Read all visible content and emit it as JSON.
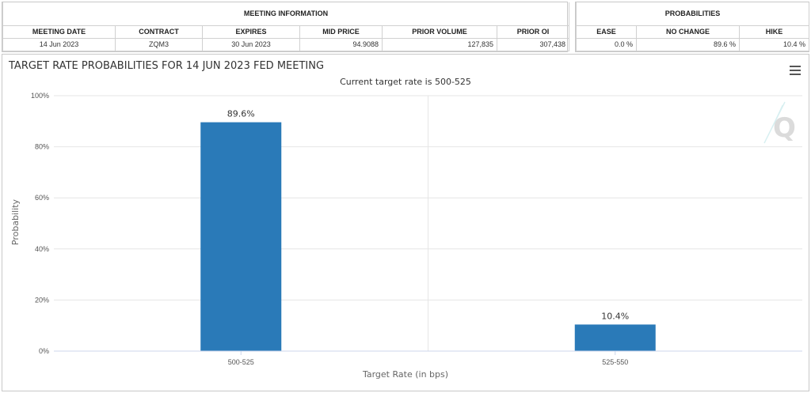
{
  "meeting_info": {
    "header": "MEETING INFORMATION",
    "columns": [
      "MEETING DATE",
      "CONTRACT",
      "EXPIRES",
      "MID PRICE",
      "PRIOR VOLUME",
      "PRIOR OI"
    ],
    "row": [
      "14 Jun 2023",
      "ZQM3",
      "30 Jun 2023",
      "94.9088",
      "127,835",
      "307,438"
    ]
  },
  "probabilities": {
    "header": "PROBABILITIES",
    "columns": [
      "EASE",
      "NO CHANGE",
      "HIKE"
    ],
    "row": [
      "0.0 %",
      "89.6 %",
      "10.4 %"
    ]
  },
  "menu_icon": "hamburger-menu-icon",
  "watermark_icon": "q-logo-icon",
  "chart_data": {
    "type": "bar",
    "title": "TARGET RATE PROBABILITIES FOR 14 JUN 2023 FED MEETING",
    "subtitle": "Current target rate is 500-525",
    "categories": [
      "500-525",
      "525-550"
    ],
    "values": [
      89.6,
      10.4
    ],
    "data_labels": [
      "89.6%",
      "10.4%"
    ],
    "xlabel": "Target Rate (in bps)",
    "ylabel": "Probability",
    "ylim": [
      0,
      100
    ],
    "yticks": [
      "0%",
      "20%",
      "40%",
      "60%",
      "80%",
      "100%"
    ],
    "bar_color": "#2a7ab8",
    "grid": true
  }
}
